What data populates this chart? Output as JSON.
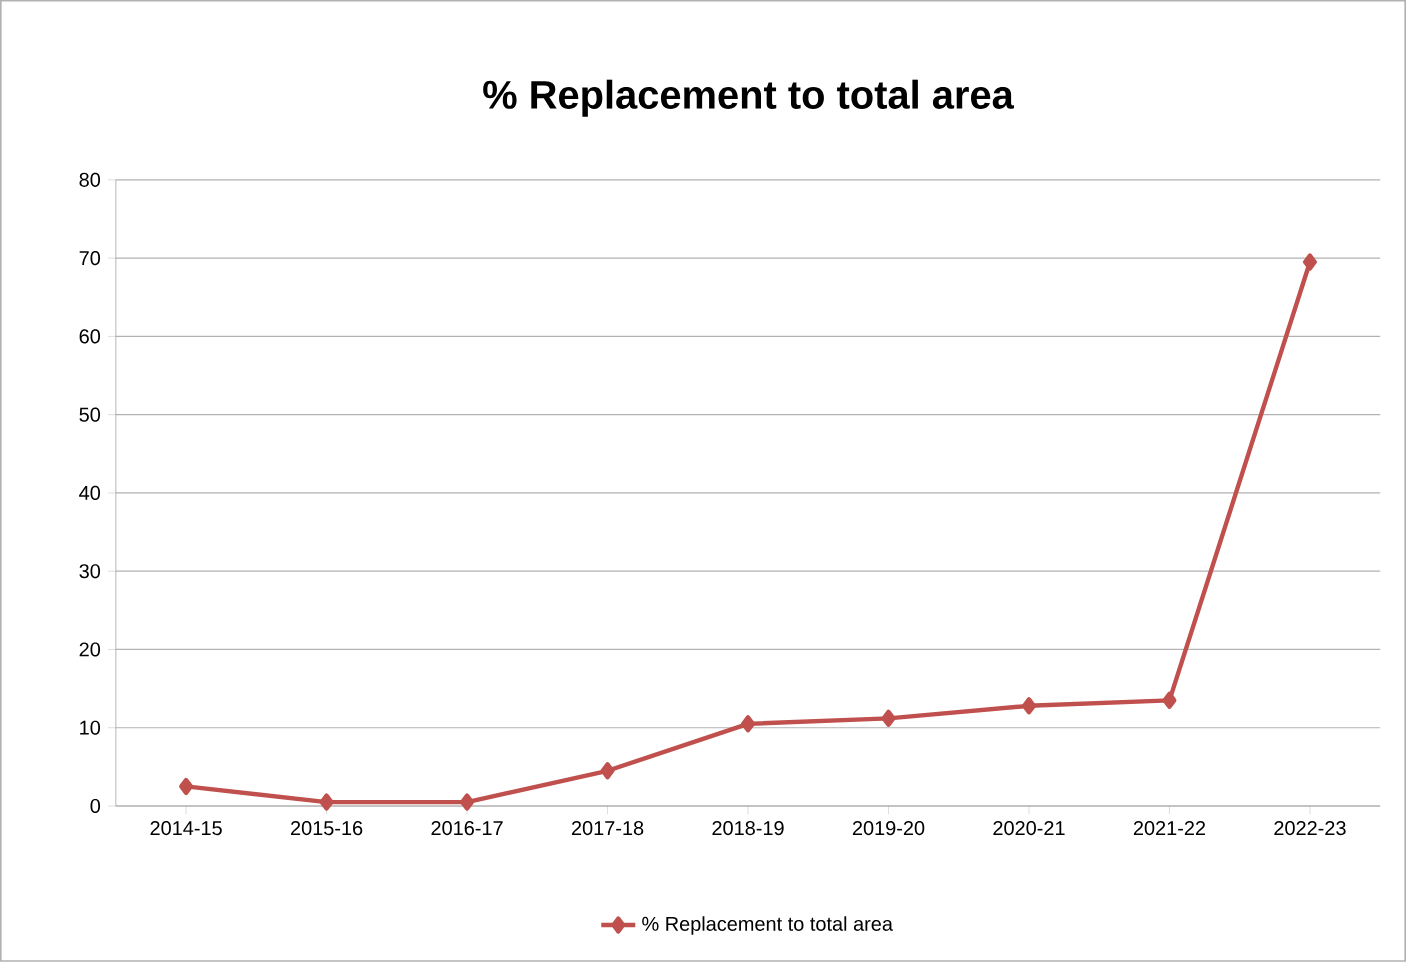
{
  "chart_data": {
    "type": "line",
    "title": "% Replacement to total area",
    "categories": [
      "2014-15",
      "2015-16",
      "2016-17",
      "2017-18",
      "2018-19",
      "2019-20",
      "2020-21",
      "2021-22",
      "2022-23"
    ],
    "series": [
      {
        "name": "% Replacement to total area",
        "color": "#c0504d",
        "values": [
          2.5,
          0.5,
          0.5,
          4.5,
          10.5,
          11.2,
          12.8,
          13.5,
          69.5
        ]
      }
    ],
    "ylim": [
      0,
      80
    ],
    "yticks": [
      0,
      10,
      20,
      30,
      40,
      50,
      60,
      70,
      80
    ],
    "grid": "y",
    "legend": "bottom",
    "marker": "diamond",
    "line_style": "solid"
  }
}
